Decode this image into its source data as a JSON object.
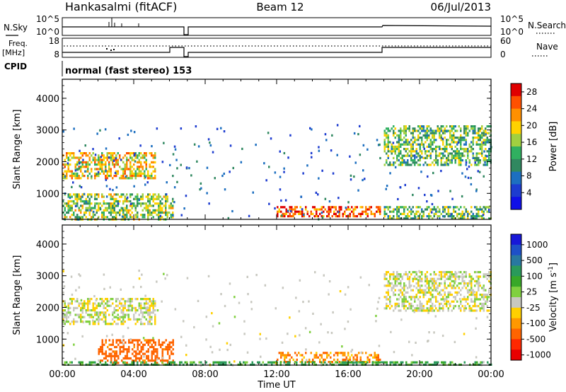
{
  "header": {
    "station": "Hankasalmi (fitACF)",
    "beam": "Beam 12",
    "date": "06/Jul/2013"
  },
  "nsky_panel": {
    "left_label": "N.Sky",
    "right_label": "N.Search",
    "left_ticks": [
      "10^5",
      "10^0"
    ],
    "right_ticks": [
      "10^5",
      "10^0"
    ]
  },
  "freq_panel": {
    "left_label_1": "Freq.",
    "left_label_2": "[MHz]",
    "right_label": "Nave",
    "left_ticks": [
      "18",
      "8"
    ],
    "right_ticks": [
      "60",
      "0"
    ]
  },
  "cpid": {
    "label": "CPID",
    "value": "normal (fast stereo) 153"
  },
  "power_colorbar": {
    "title": "Power [dB]",
    "ticks": [
      "28",
      "24",
      "20",
      "16",
      "12",
      "8",
      "4"
    ],
    "colors": [
      "#e00000",
      "#ff5000",
      "#ff9000",
      "#ffd200",
      "#a0d040",
      "#30b060",
      "#308860",
      "#1d6fc0",
      "#1d3cd0",
      "#1010e8"
    ]
  },
  "velocity_colorbar": {
    "title": "Velocity [m s",
    "title_sup": "-1",
    "title_end": "]",
    "ticks": [
      "1000",
      "500",
      "100",
      "25",
      "-25",
      "-100",
      "-500",
      "-1000"
    ],
    "colors": [
      "#1818d8",
      "#1e50c8",
      "#2878a0",
      "#2a9a5a",
      "#38a828",
      "#80d040",
      "#c8c8c0",
      "#ffd000",
      "#ff9800",
      "#ff6400",
      "#ff2800",
      "#e80000"
    ]
  },
  "range_axis": {
    "label": "Slant Range [km]",
    "ticks": [
      "1000",
      "2000",
      "3000",
      "4000"
    ]
  },
  "time_axis": {
    "label": "Time UT",
    "ticks": [
      "00:00",
      "04:00",
      "08:00",
      "12:00",
      "16:00",
      "20:00",
      "00:00"
    ]
  },
  "chart_data": [
    {
      "type": "heatmap",
      "title": "Power [dB]",
      "xlabel": "Time UT",
      "ylabel": "Slant Range [km]",
      "xlim": [
        "00:00",
        "24:00"
      ],
      "ylim": [
        180,
        4600
      ],
      "colorbar_range": [
        0,
        30
      ],
      "echo_regions": [
        {
          "t0": 0.0,
          "t1": 5.2,
          "r0": 1500,
          "r1": 2300,
          "power": 20
        },
        {
          "t0": 0.0,
          "t1": 6.2,
          "r0": 200,
          "r1": 1000,
          "power": 16
        },
        {
          "t0": 12.0,
          "t1": 17.8,
          "r0": 250,
          "r1": 600,
          "power": 26
        },
        {
          "t0": 18.0,
          "t1": 24.0,
          "r0": 1900,
          "r1": 3150,
          "power": 14
        },
        {
          "t0": 18.0,
          "t1": 24.0,
          "r0": 200,
          "r1": 600,
          "power": 14
        }
      ]
    },
    {
      "type": "heatmap",
      "title": "Velocity [m s-1]",
      "xlabel": "Time UT",
      "ylabel": "Slant Range [km]",
      "xlim": [
        "00:00",
        "24:00"
      ],
      "ylim": [
        180,
        4600
      ],
      "colorbar_range": [
        -1000,
        1000
      ],
      "echo_regions": [
        {
          "t0": 0.0,
          "t1": 5.2,
          "r0": 1500,
          "r1": 2300,
          "velocity": 0
        },
        {
          "t0": 2.0,
          "t1": 6.2,
          "r0": 250,
          "r1": 1000,
          "velocity": -150
        },
        {
          "t0": 12.0,
          "t1": 17.8,
          "r0": 250,
          "r1": 600,
          "velocity": -100
        },
        {
          "t0": 18.0,
          "t1": 24.0,
          "r0": 1900,
          "r1": 3150,
          "velocity": 0
        },
        {
          "t0": 0.0,
          "t1": 24.0,
          "r0": 180,
          "r1": 300,
          "velocity": 100
        }
      ]
    }
  ]
}
